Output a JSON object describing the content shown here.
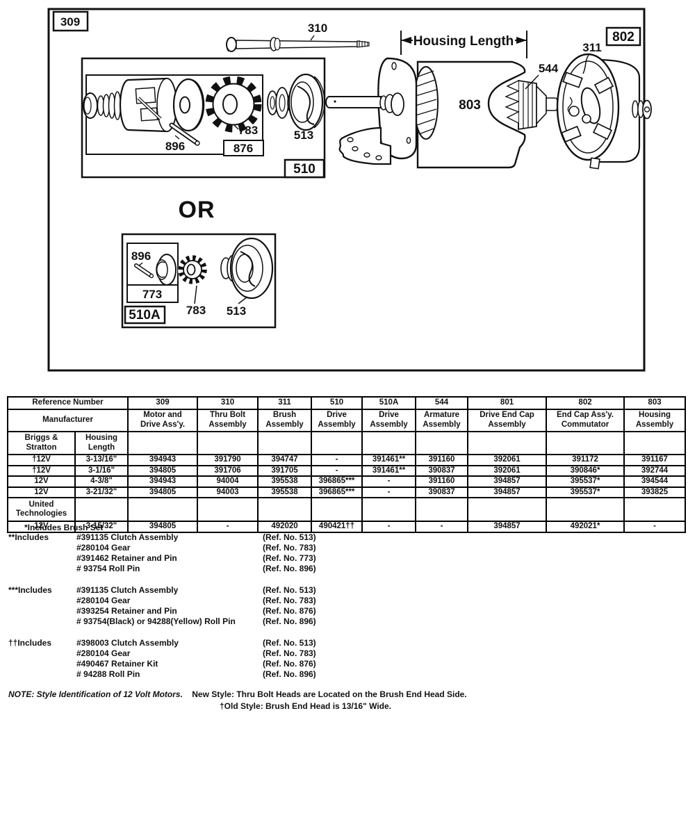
{
  "diagram": {
    "labels": {
      "box309": "309",
      "bolt310": "310",
      "housing_length": "Housing Length",
      "brush311": "311",
      "box802": "802",
      "armature544": "544",
      "housing803": "803",
      "gear783_a": "783",
      "pin896_a": "896",
      "box876": "876",
      "clutch513_a": "513",
      "box510": "510",
      "or": "OR",
      "pin896_b": "896",
      "retainer773": "773",
      "gear783_b": "783",
      "clutch513_b": "513",
      "box510a": "510A"
    }
  },
  "table": {
    "header_row1": [
      "Reference Number",
      "309",
      "310",
      "311",
      "510",
      "510A",
      "544",
      "801",
      "802",
      "803"
    ],
    "header_row2": [
      "Manufacturer",
      "Motor and\nDrive Ass'y.",
      "Thru Bolt\nAssembly",
      "Brush\nAssembly",
      "Drive\nAssembly",
      "Drive\nAssembly",
      "Armature\nAssembly",
      "Drive End Cap\nAssembly",
      "End Cap Ass'y.\nCommutator",
      "Housing\nAssembly"
    ],
    "rows": [
      [
        "Briggs &\nStratton",
        "Housing\nLength",
        "",
        "",
        "",
        "",
        "",
        "",
        "",
        "",
        ""
      ],
      [
        "†12V",
        "3-13/16\"",
        "394943",
        "391790",
        "394747",
        "-",
        "391461**",
        "391160",
        "392061",
        "391172",
        "391167"
      ],
      [
        "†12V",
        "3-1/16\"",
        "394805",
        "391706",
        "391705",
        "-",
        "391461**",
        "390837",
        "392061",
        "390846*",
        "392744"
      ],
      [
        "12V",
        "4-3/8\"",
        "394943",
        "94004",
        "395538",
        "396865***",
        "-",
        "391160",
        "394857",
        "395537*",
        "394544"
      ],
      [
        "12V",
        "3-21/32\"",
        "394805",
        "94003",
        "395538",
        "396865***",
        "-",
        "390837",
        "394857",
        "395537*",
        "393825"
      ],
      [
        "United\nTechnologies",
        "",
        "",
        "",
        "",
        "",
        "",
        "",
        "",
        "",
        ""
      ],
      [
        "12V",
        "3-15/32\"",
        "394805",
        "-",
        "492020",
        "490421††",
        "-",
        "-",
        "394857",
        "492021*",
        "-"
      ]
    ]
  },
  "footnotes": {
    "brush_set": "*Includes Brush Set",
    "blocks": [
      {
        "label": "**Includes",
        "items": [
          {
            "part": "#391135 Clutch Assembly",
            "ref": "(Ref. No. 513)"
          },
          {
            "part": "#280104 Gear",
            "ref": "(Ref. No. 783)"
          },
          {
            "part": "#391462 Retainer and Pin",
            "ref": "(Ref. No. 773)"
          },
          {
            "part": "# 93754 Roll Pin",
            "ref": "(Ref. No. 896)"
          }
        ]
      },
      {
        "label": "***Includes",
        "items": [
          {
            "part": "#391135 Clutch Assembly",
            "ref": "(Ref. No. 513)"
          },
          {
            "part": "#280104 Gear",
            "ref": "(Ref. No. 783)"
          },
          {
            "part": "#393254 Retainer and Pin",
            "ref": "(Ref. No. 876)"
          },
          {
            "part": "# 93754(Black) or 94288(Yellow) Roll Pin",
            "ref": "(Ref. No. 896)"
          }
        ]
      },
      {
        "label": "††Includes",
        "items": [
          {
            "part": "#398003 Clutch Assembly",
            "ref": "(Ref. No. 513)"
          },
          {
            "part": "#280104 Gear",
            "ref": "(Ref. No. 783)"
          },
          {
            "part": "#490467 Retainer Kit",
            "ref": "(Ref. No. 876)"
          },
          {
            "part": "# 94288 Roll Pin",
            "ref": "(Ref. No. 896)"
          }
        ]
      }
    ]
  },
  "note": {
    "lead": "NOTE: Style Identification of 12 Volt Motors.",
    "new_style": "New Style: Thru Bolt Heads are Located on the Brush End Head Side.",
    "old_style": "†Old Style: Brush End Head is 13/16\" Wide."
  }
}
